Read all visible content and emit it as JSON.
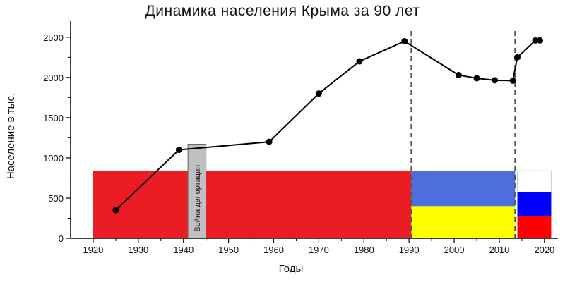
{
  "chart_data": {
    "type": "line",
    "title": "Динамика населения Крыма за  90 лет",
    "xlabel": "Годы",
    "ylabel": "Население в тыс.",
    "xlim": [
      1915,
      2023
    ],
    "ylim": [
      0,
      2700
    ],
    "x_ticks": [
      1920,
      1930,
      1940,
      1950,
      1960,
      1970,
      1980,
      1990,
      2000,
      2010,
      2020
    ],
    "y_ticks": [
      0,
      500,
      1000,
      1500,
      2000,
      2500
    ],
    "grid": false,
    "series": [
      {
        "x": [
          1925,
          1939,
          1959,
          1970,
          1979,
          1989,
          2001,
          2005,
          2009,
          2013,
          2014,
          2018,
          2019
        ],
        "values": [
          350,
          1100,
          1200,
          1800,
          2200,
          2450,
          2030,
          1990,
          1965,
          1960,
          2250,
          2460,
          2460
        ],
        "color": "#000000"
      }
    ],
    "vlines": [
      {
        "x": 1990.5,
        "style": "dashed",
        "color": "#555555"
      },
      {
        "x": 2013.5,
        "style": "dashed",
        "color": "#555555"
      }
    ],
    "background_blocks": [
      {
        "x0": 1920,
        "x1": 1990.5,
        "y0": 0,
        "y1": 840,
        "color": "#ec1c24"
      },
      {
        "x0": 1990.5,
        "x1": 2013.5,
        "y0": 400,
        "y1": 840,
        "color": "#4d6edd"
      },
      {
        "x0": 1990.5,
        "x1": 2013.5,
        "y0": 0,
        "y1": 400,
        "color": "#ffff00"
      },
      {
        "x0": 2014,
        "x1": 2021.5,
        "y0": 575,
        "y1": 840,
        "color": "#ffffff",
        "stroke": "#cccccc"
      },
      {
        "x0": 2014,
        "x1": 2021.5,
        "y0": 280,
        "y1": 575,
        "color": "#0000ff"
      },
      {
        "x0": 2014,
        "x1": 2021.5,
        "y0": 0,
        "y1": 280,
        "color": "#ff0000"
      }
    ],
    "annotation": {
      "text": "Война  депортация",
      "x0": 1941,
      "x1": 1945,
      "y0": 0,
      "y1": 1170,
      "color": "#c0c0c0"
    }
  }
}
